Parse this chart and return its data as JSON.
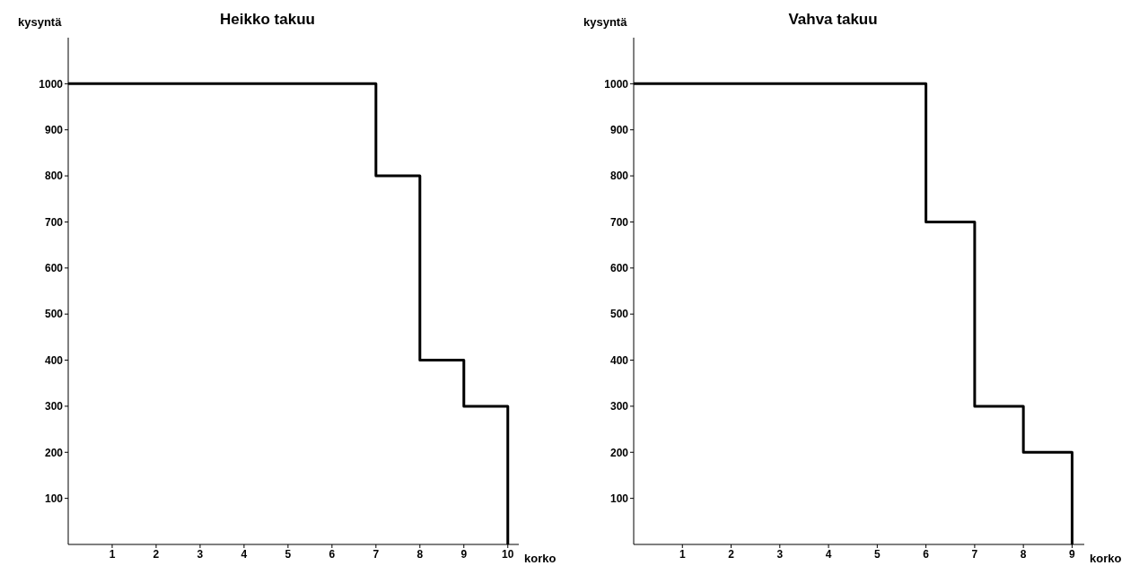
{
  "chart_data": [
    {
      "type": "step",
      "title": "Heikko takuu",
      "xlabel": "korko",
      "ylabel": "kysyntä",
      "x": [
        0,
        7,
        8,
        9,
        10
      ],
      "values": [
        1000,
        800,
        400,
        300,
        0
      ],
      "color": "#000000",
      "xlim": [
        0,
        10.25
      ],
      "xticks": [
        1,
        2,
        3,
        4,
        5,
        6,
        7,
        8,
        9,
        10
      ],
      "ylim": [
        0,
        1100
      ],
      "yticks": [
        100,
        200,
        300,
        400,
        500,
        600,
        700,
        800,
        900,
        1000
      ],
      "grid": false,
      "legend": false,
      "marker": "none"
    },
    {
      "type": "step",
      "title": "Vahva takuu",
      "xlabel": "korko",
      "ylabel": "kysyntä",
      "x": [
        0,
        6,
        7,
        8,
        9
      ],
      "values": [
        1000,
        700,
        300,
        200,
        0
      ],
      "color": "#000000",
      "xlim": [
        0,
        9.25
      ],
      "xticks": [
        1,
        2,
        3,
        4,
        5,
        6,
        7,
        8,
        9
      ],
      "ylim": [
        0,
        1100
      ],
      "yticks": [
        100,
        200,
        300,
        400,
        500,
        600,
        700,
        800,
        900,
        1000
      ],
      "grid": false,
      "legend": false,
      "marker": "none"
    }
  ]
}
